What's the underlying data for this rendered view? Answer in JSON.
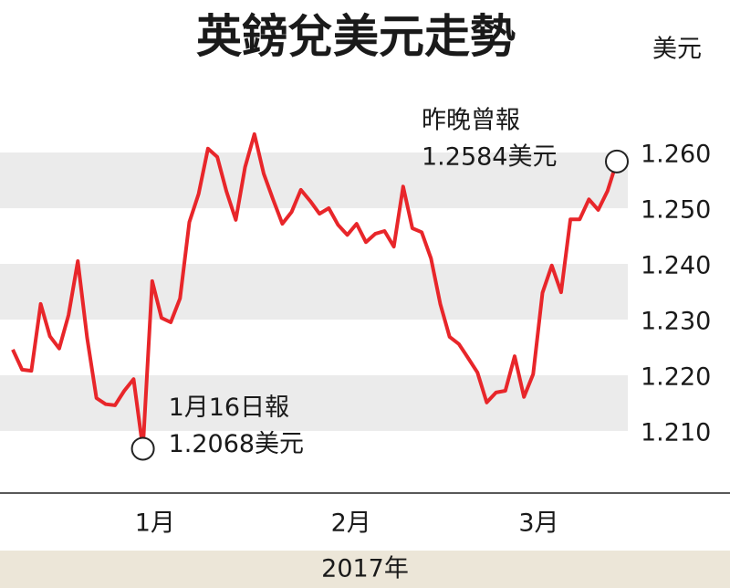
{
  "chart_data": {
    "type": "line",
    "title": "英鎊兌美元走勢",
    "unit": "美元",
    "x_label": "2017年",
    "values": [
      1.2246,
      1.221,
      1.2208,
      1.2328,
      1.227,
      1.2248,
      1.2308,
      1.2405,
      1.2267,
      1.2159,
      1.2148,
      1.2146,
      1.2172,
      1.2193,
      1.2068,
      1.2369,
      1.2303,
      1.2295,
      1.2338,
      1.2475,
      1.2526,
      1.2607,
      1.2592,
      1.253,
      1.2479,
      1.2574,
      1.2633,
      1.2562,
      1.2516,
      1.2472,
      1.2493,
      1.2533,
      1.2513,
      1.249,
      1.25,
      1.247,
      1.2452,
      1.2472,
      1.2439,
      1.2454,
      1.2459,
      1.2431,
      1.2539,
      1.2464,
      1.2457,
      1.241,
      1.2328,
      1.2269,
      1.2256,
      1.2231,
      1.2205,
      1.2151,
      1.2169,
      1.2172,
      1.2234,
      1.2161,
      1.2202,
      1.2348,
      1.2397,
      1.2349,
      1.248,
      1.248,
      1.2516,
      1.2497,
      1.2531,
      1.2584
    ],
    "color": "#e8262a",
    "xlim": [
      0,
      65
    ],
    "xticks": [
      {
        "value": 15.3,
        "label": "1月"
      },
      {
        "value": 36.4,
        "label": "2月"
      },
      {
        "value": 56.6,
        "label": "3月"
      }
    ],
    "ylim": [
      1.199,
      1.271
    ],
    "yticks": [
      {
        "value": 1.21,
        "label": "1.210"
      },
      {
        "value": 1.22,
        "label": "1.220"
      },
      {
        "value": 1.23,
        "label": "1.230"
      },
      {
        "value": 1.24,
        "label": "1.240"
      },
      {
        "value": 1.25,
        "label": "1.250"
      },
      {
        "value": 1.26,
        "label": "1.260"
      }
    ],
    "bands": true,
    "annotations": [
      {
        "point": 14,
        "lines": [
          "1月16日報",
          "1.2068美元"
        ]
      },
      {
        "point": 65,
        "lines": [
          "昨晚曾報",
          "1.2584美元"
        ]
      }
    ]
  }
}
